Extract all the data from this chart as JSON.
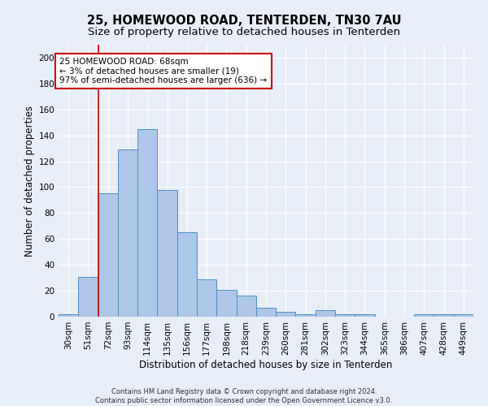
{
  "title_line1": "25, HOMEWOOD ROAD, TENTERDEN, TN30 7AU",
  "title_line2": "Size of property relative to detached houses in Tenterden",
  "xlabel": "Distribution of detached houses by size in Tenterden",
  "ylabel": "Number of detached properties",
  "footer_line1": "Contains HM Land Registry data © Crown copyright and database right 2024.",
  "footer_line2": "Contains public sector information licensed under the Open Government Licence v3.0.",
  "annotation_line1": "25 HOMEWOOD ROAD: 68sqm",
  "annotation_line2": "← 3% of detached houses are smaller (19)",
  "annotation_line3": "97% of semi-detached houses are larger (636) →",
  "bar_labels": [
    "30sqm",
    "51sqm",
    "72sqm",
    "93sqm",
    "114sqm",
    "135sqm",
    "156sqm",
    "177sqm",
    "198sqm",
    "218sqm",
    "239sqm",
    "260sqm",
    "281sqm",
    "302sqm",
    "323sqm",
    "344sqm",
    "365sqm",
    "386sqm",
    "407sqm",
    "428sqm",
    "449sqm"
  ],
  "bar_values": [
    2,
    31,
    95,
    129,
    145,
    98,
    65,
    29,
    21,
    16,
    7,
    4,
    2,
    5,
    2,
    2,
    0,
    0,
    2,
    2,
    2
  ],
  "bar_color": "#aec6e8",
  "bar_edge_color": "#4a90c4",
  "property_line_x": 1.5,
  "ylim": [
    0,
    210
  ],
  "yticks": [
    0,
    20,
    40,
    60,
    80,
    100,
    120,
    140,
    160,
    180,
    200
  ],
  "bg_color": "#e8eef8",
  "plot_bg_color": "#e8eef8",
  "grid_color": "#ffffff",
  "annotation_box_color": "#cc0000",
  "title_fontsize": 10.5,
  "subtitle_fontsize": 9.5,
  "axis_label_fontsize": 8.5,
  "tick_fontsize": 7.5,
  "annotation_fontsize": 7.5,
  "footer_fontsize": 6.0
}
